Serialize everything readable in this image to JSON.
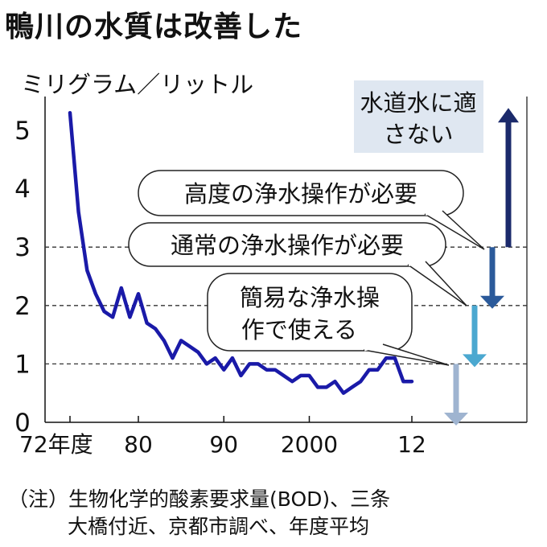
{
  "title": "鴨川の水質は改善した",
  "note": {
    "line1": "（注）生物化学的酸素要求量(BOD)、三条",
    "line2": "大橋付近、京都市調べ、年度平均"
  },
  "chart_data": {
    "type": "line",
    "title": "鴨川の水質は改善した",
    "ylabel": "ミリグラム／リットル",
    "xlabel": "",
    "xlim": [
      1972,
      2012
    ],
    "ylim": [
      0,
      5
    ],
    "x_ticks": [
      {
        "value": 1972,
        "label": "72年度"
      },
      {
        "value": 1980,
        "label": "80"
      },
      {
        "value": 1990,
        "label": "90"
      },
      {
        "value": 2000,
        "label": "2000"
      },
      {
        "value": 2012,
        "label": "12"
      }
    ],
    "y_ticks": [
      {
        "value": 0,
        "label": "0"
      },
      {
        "value": 1,
        "label": "1"
      },
      {
        "value": 2,
        "label": "2"
      },
      {
        "value": 3,
        "label": "3"
      },
      {
        "value": 4,
        "label": "4"
      },
      {
        "value": 5,
        "label": "5"
      }
    ],
    "series": [
      {
        "color": "#1a1aa8",
        "points": [
          [
            1972,
            5.3
          ],
          [
            1973,
            3.6
          ],
          [
            1974,
            2.6
          ],
          [
            1975,
            2.2
          ],
          [
            1976,
            1.9
          ],
          [
            1977,
            1.8
          ],
          [
            1978,
            2.3
          ],
          [
            1979,
            1.8
          ],
          [
            1980,
            2.2
          ],
          [
            1981,
            1.7
          ],
          [
            1982,
            1.6
          ],
          [
            1983,
            1.4
          ],
          [
            1984,
            1.1
          ],
          [
            1985,
            1.4
          ],
          [
            1986,
            1.3
          ],
          [
            1987,
            1.2
          ],
          [
            1988,
            1.0
          ],
          [
            1989,
            1.1
          ],
          [
            1990,
            0.9
          ],
          [
            1991,
            1.1
          ],
          [
            1992,
            0.8
          ],
          [
            1993,
            1.0
          ],
          [
            1994,
            1.0
          ],
          [
            1995,
            0.9
          ],
          [
            1996,
            0.9
          ],
          [
            1997,
            0.8
          ],
          [
            1998,
            0.7
          ],
          [
            1999,
            0.8
          ],
          [
            2000,
            0.8
          ],
          [
            2001,
            0.6
          ],
          [
            2002,
            0.6
          ],
          [
            2003,
            0.7
          ],
          [
            2004,
            0.5
          ],
          [
            2005,
            0.6
          ],
          [
            2006,
            0.7
          ],
          [
            2007,
            0.9
          ],
          [
            2008,
            0.9
          ],
          [
            2009,
            1.1
          ],
          [
            2010,
            1.1
          ],
          [
            2011,
            0.7
          ],
          [
            2012,
            0.7
          ]
        ]
      }
    ],
    "reference_lines": [
      1,
      2,
      3
    ],
    "grid": "dashed horizontal at 1, 2, 3",
    "bands": [
      {
        "label": "水道水に適さない",
        "from": 3,
        "to": 5.3,
        "color": "#1b2a6b",
        "style": "box"
      },
      {
        "label": "高度の浄水操作が必要",
        "from": 2,
        "to": 3,
        "color": "#2b5a9a",
        "style": "bubble"
      },
      {
        "label": "通常の浄水操作が必要",
        "from": 1,
        "to": 2,
        "color": "#4ba8d0",
        "style": "bubble"
      },
      {
        "label": "簡易な浄水操作で使える",
        "lines": [
          "簡易な浄水操",
          "作で使える"
        ],
        "from": 0,
        "to": 1,
        "color": "#9fb4d0",
        "style": "bubble"
      }
    ],
    "colors": {
      "label_box": "#dfe7f1",
      "dashed_line": "#333333"
    }
  }
}
